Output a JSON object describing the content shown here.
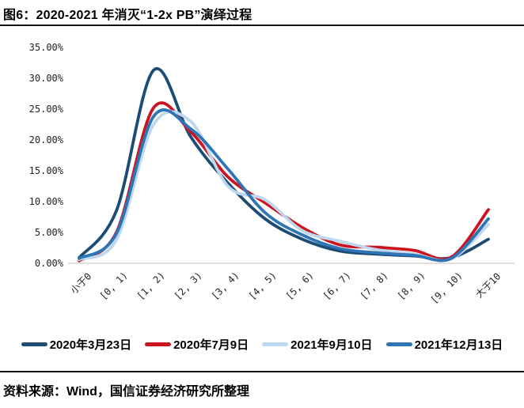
{
  "page": {
    "title": "图6：2020-2021 年消灭“1-2x PB”演绎过程",
    "source": "资料来源：Wind，国信证券经济研究所整理"
  },
  "chart_data": {
    "type": "line",
    "title": "2020-2021 年消灭“1-2x PB”演绎过程",
    "categories": [
      "小于0",
      "[0, 1)",
      "[1, 2)",
      "[2, 3)",
      "[3, 4)",
      "[4, 5)",
      "[5, 6)",
      "[6, 7)",
      "[7, 8)",
      "[8, 9)",
      "[9, 10)",
      "大于10"
    ],
    "series": [
      {
        "name": "2020年3月23日",
        "color": "#1c4c74",
        "values": [
          0.9,
          8.5,
          31.3,
          20.5,
          13.0,
          7.2,
          3.9,
          2.0,
          1.5,
          1.2,
          0.9,
          3.9
        ]
      },
      {
        "name": "2020年7月9日",
        "color": "#cc1420",
        "values": [
          0.4,
          5.0,
          25.2,
          21.3,
          14.0,
          9.8,
          5.8,
          3.0,
          2.6,
          2.1,
          1.0,
          8.7
        ]
      },
      {
        "name": "2021年9月10日",
        "color": "#bdd7ee",
        "values": [
          0.6,
          3.8,
          22.5,
          23.0,
          12.5,
          10.3,
          5.3,
          3.6,
          2.2,
          1.5,
          0.7,
          6.3
        ]
      },
      {
        "name": "2021年12月13日",
        "color": "#2e75b6",
        "values": [
          0.8,
          4.8,
          23.8,
          21.8,
          15.3,
          8.2,
          4.6,
          2.4,
          1.7,
          1.3,
          0.8,
          7.2
        ]
      }
    ],
    "y_axis": {
      "min": 0,
      "max": 35,
      "step": 5,
      "tick_labels": [
        "0.00%",
        "5.00%",
        "10.00%",
        "15.00%",
        "20.00%",
        "25.00%",
        "30.00%",
        "35.00%"
      ]
    },
    "x_axis_label": "",
    "y_axis_label": "",
    "grid": false,
    "legend_position": "bottom",
    "baseline_color": "#d6d6d6"
  }
}
